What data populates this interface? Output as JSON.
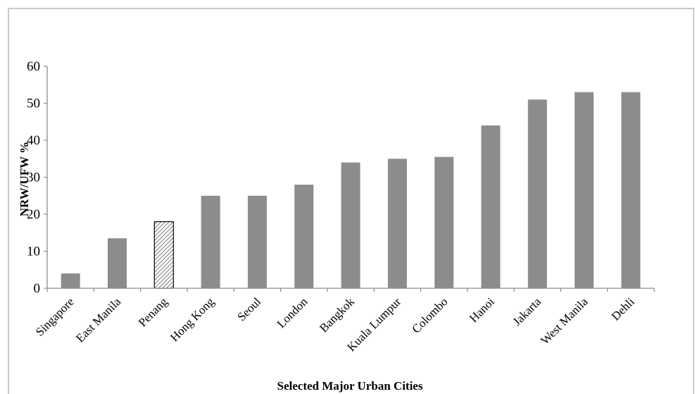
{
  "chart_data": {
    "type": "bar",
    "title": "",
    "xlabel": "Selected Major Urban Cities",
    "ylabel": "NRW/UFW %",
    "ylim": [
      0,
      60
    ],
    "yticks": [
      0,
      10,
      20,
      30,
      40,
      50,
      60
    ],
    "grid": false,
    "legend": "none",
    "categories": [
      "Singapore",
      "East Manila",
      "Penang",
      "Hong Kong",
      "Seoul",
      "London",
      "Bangkok",
      "Kuala Lumpur",
      "Colombo",
      "Hanoi",
      "Jakarta",
      "West Manila",
      "Dehli"
    ],
    "values": [
      4,
      13.5,
      18,
      25,
      25,
      28,
      34,
      35,
      35.5,
      44,
      51,
      53,
      53
    ],
    "highlight_category": "Penang",
    "colors": {
      "bar": "#8c8c8c",
      "highlight_fill": "#ffffff",
      "highlight_stroke": "#000000",
      "axis": "#8c8c8c",
      "frame": "#c9c9c9"
    }
  }
}
